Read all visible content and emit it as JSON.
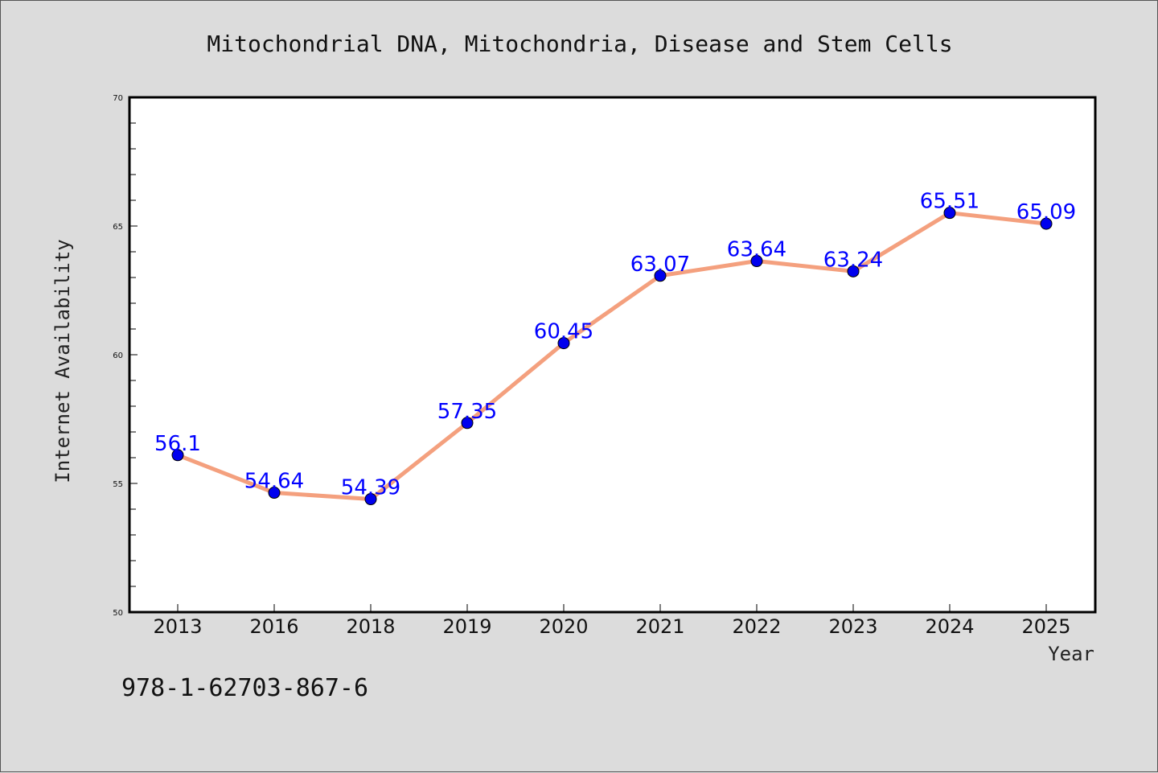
{
  "chart_data": {
    "type": "line",
    "title": "Mitochondrial DNA, Mitochondria, Disease and Stem Cells",
    "xlabel": "Year",
    "ylabel": "Internet Availability",
    "categories": [
      "2013",
      "2016",
      "2018",
      "2019",
      "2020",
      "2021",
      "2022",
      "2023",
      "2024",
      "2025"
    ],
    "series": [
      {
        "values": [
          56.1,
          54.64,
          54.39,
          57.35,
          60.45,
          63.07,
          63.64,
          63.24,
          65.51,
          65.09
        ],
        "labels": [
          "56.1",
          "54.64",
          "54.39",
          "57.35",
          "60.45",
          "63.07",
          "63.64",
          "63.24",
          "65.51",
          "65.09"
        ],
        "line_color": "#f4a07e",
        "marker_color": "#0000ee",
        "label_color": "#0000ff"
      }
    ],
    "ylim": [
      50,
      70
    ],
    "yticks": [
      "50",
      "55",
      "60",
      "65",
      "70"
    ],
    "grid": false,
    "legend": "none"
  },
  "footer_text": "978-1-62703-867-6",
  "colors": {
    "background": "#dcdcdc",
    "plot_background": "#ffffff"
  }
}
